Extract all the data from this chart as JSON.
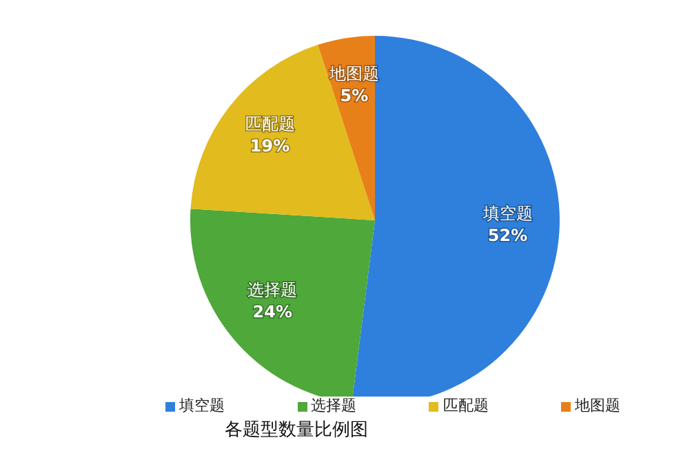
{
  "chart_data": {
    "type": "pie",
    "title": "各题型数量比例图",
    "categories": [
      "填空题",
      "选择题",
      "匹配题",
      "地图题"
    ],
    "values": [
      52,
      24,
      19,
      5
    ],
    "colors": [
      "#2f80dc",
      "#4fa83a",
      "#e2bb1e",
      "#e8801a"
    ],
    "value_labels": [
      "52%",
      "24%",
      "19%",
      "5%"
    ],
    "legend": "bottom"
  }
}
